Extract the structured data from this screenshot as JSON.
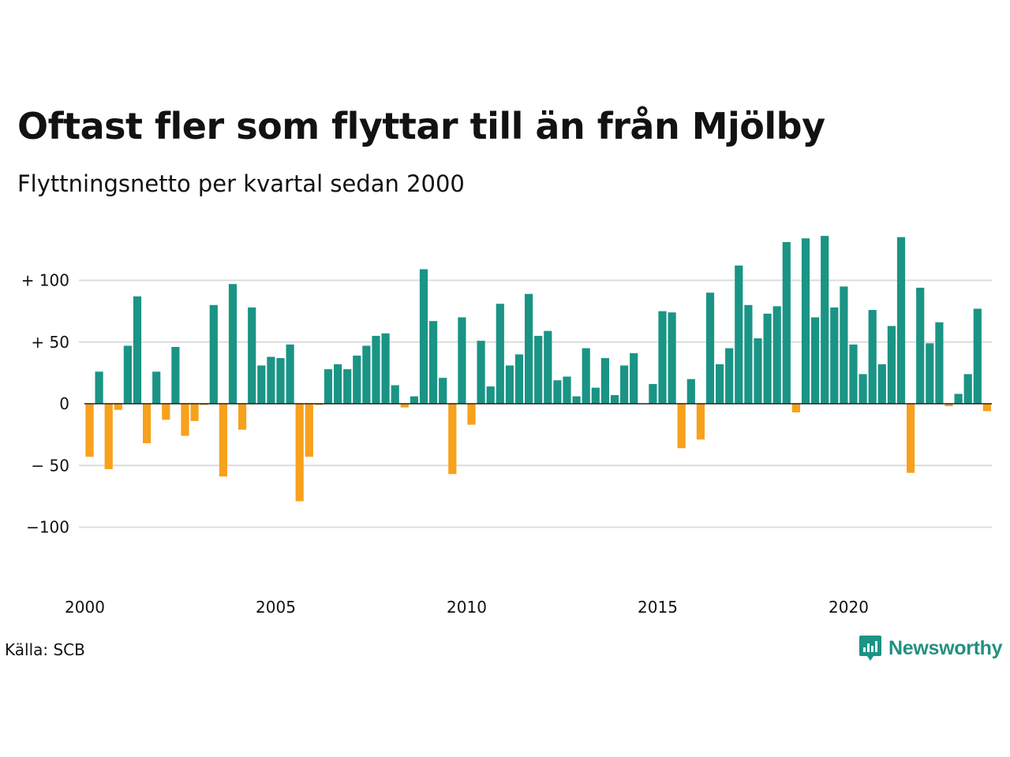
{
  "title": "Oftast fler som flyttar till än från Mjölby",
  "subtitle": "Flyttningsnetto per kvartal sedan 2000",
  "source": "Källa: SCB",
  "brand": {
    "name": "Newsworthy"
  },
  "colors": {
    "positive": "#1a9485",
    "negative": "#f7a11c",
    "grid": "#dcdcdc",
    "zero": "#222222"
  },
  "chart_data": {
    "type": "bar",
    "start_year": 2000,
    "quarters_per_year": 4,
    "x_ticks": [
      {
        "value": 2000,
        "label": "2000"
      },
      {
        "value": 2005,
        "label": "2005"
      },
      {
        "value": 2010,
        "label": "2010"
      },
      {
        "value": 2015,
        "label": "2015"
      },
      {
        "value": 2020,
        "label": "2020"
      }
    ],
    "y_ticks": [
      {
        "value": 100,
        "label": "+ 100"
      },
      {
        "value": 50,
        "label": "+  50"
      },
      {
        "value": 0,
        "label": "0"
      },
      {
        "value": -50,
        "label": "− 50"
      },
      {
        "value": -100,
        "label": "−100"
      }
    ],
    "ylim": [
      -150,
      150
    ],
    "xlim": [
      2000,
      2024
    ],
    "values": [
      -43,
      26,
      -53,
      -5,
      47,
      87,
      -32,
      26,
      -13,
      46,
      -26,
      -14,
      -1,
      80,
      -59,
      97,
      -21,
      78,
      31,
      38,
      37,
      48,
      -79,
      -43,
      -1,
      28,
      32,
      28,
      39,
      47,
      55,
      57,
      15,
      -3,
      6,
      109,
      67,
      21,
      -57,
      70,
      -17,
      51,
      14,
      81,
      31,
      40,
      89,
      55,
      59,
      19,
      22,
      6,
      45,
      13,
      37,
      7,
      31,
      41,
      0,
      16,
      75,
      74,
      -36,
      20,
      -29,
      90,
      32,
      45,
      112,
      80,
      53,
      73,
      79,
      131,
      -7,
      134,
      70,
      136,
      78,
      95,
      48,
      24,
      76,
      32,
      63,
      135,
      -56,
      94,
      49,
      66,
      -2,
      8,
      24,
      77,
      -6
    ]
  }
}
